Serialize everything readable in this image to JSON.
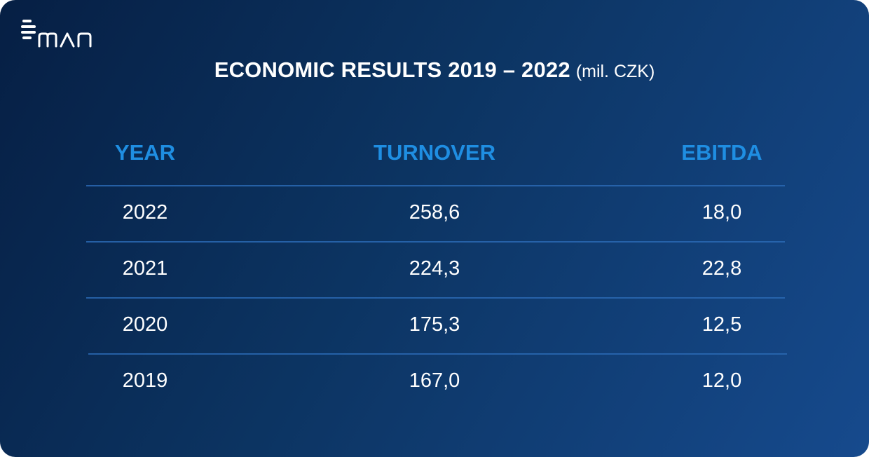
{
  "brand": {
    "logo_text": "man"
  },
  "title": {
    "main": "ECONOMIC RESULTS 2019 – 2022",
    "unit": "(mil. CZK)"
  },
  "table": {
    "headers": [
      "YEAR",
      "TURNOVER",
      "EBITDA"
    ],
    "rows": [
      [
        "2022",
        "258,6",
        "18,0"
      ],
      [
        "2021",
        "224,3",
        "22,8"
      ],
      [
        "2020",
        "175,3",
        "12,5"
      ],
      [
        "2019",
        "167,0",
        "12,0"
      ]
    ]
  },
  "colors": {
    "background_start": "#061f44",
    "background_end": "#164a8d",
    "header_text": "#1f8ee2",
    "divider": "#2a68b3",
    "body_text": "#ffffff"
  }
}
